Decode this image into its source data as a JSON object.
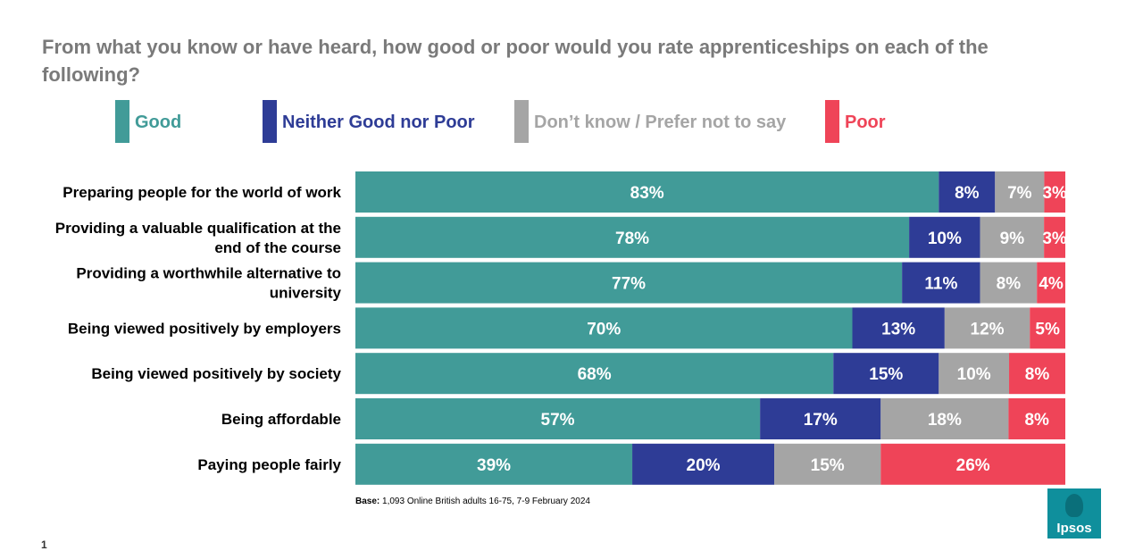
{
  "title": "From what you know or have heard, how good or poor would you rate apprenticeships on each of the following?",
  "legend": [
    {
      "label": "Good",
      "color": "#419b98"
    },
    {
      "label": "Neither Good nor Poor",
      "color": "#2e3c96"
    },
    {
      "label": "Don’t know / Prefer not to say",
      "color": "#a5a5a5"
    },
    {
      "label": "Poor",
      "color": "#ef4458"
    }
  ],
  "chart_data": {
    "type": "bar",
    "orientation": "horizontal",
    "stacked": true,
    "unit": "%",
    "xlim": [
      0,
      100
    ],
    "categories": [
      [
        "Preparing people for the world of work"
      ],
      [
        "Providing a valuable qualification at the",
        "end of the course"
      ],
      [
        "Providing a worthwhile alternative to",
        "university"
      ],
      [
        "Being viewed positively by employers"
      ],
      [
        "Being viewed positively by society"
      ],
      [
        "Being affordable"
      ],
      [
        "Paying people fairly"
      ]
    ],
    "series": [
      {
        "name": "Good",
        "color": "#419b98",
        "values": [
          83,
          78,
          77,
          70,
          68,
          57,
          39
        ]
      },
      {
        "name": "Neither Good nor Poor",
        "color": "#2e3c96",
        "values": [
          8,
          10,
          11,
          13,
          15,
          17,
          20
        ]
      },
      {
        "name": "Don’t know / Prefer not to say",
        "color": "#a5a5a5",
        "values": [
          7,
          9,
          8,
          12,
          10,
          18,
          15
        ]
      },
      {
        "name": "Poor",
        "color": "#ef4458",
        "values": [
          3,
          3,
          4,
          5,
          8,
          8,
          26
        ]
      }
    ]
  },
  "footnote": {
    "base_label": "Base:",
    "base_text": "1,093 Online British adults 16-75, 7-9 February 2024"
  },
  "logo": {
    "text": "Ipsos",
    "color": "#0f8f9c"
  },
  "page_number": "1"
}
